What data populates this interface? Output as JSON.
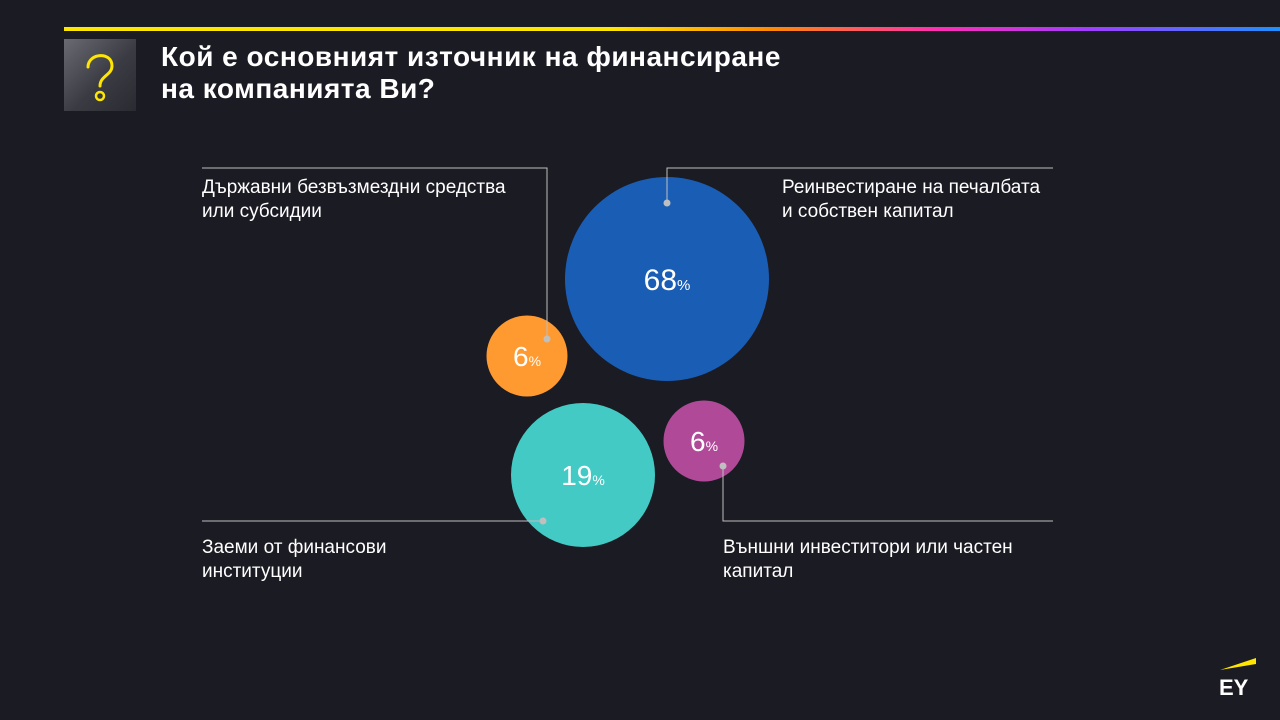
{
  "title_lines": [
    "Кой е основният източник на финансиране",
    "на компанията Ви?"
  ],
  "icon": "question-mark-icon",
  "logo_text": "EY",
  "colors": {
    "background": "#1b1b23",
    "blue": "#1a5db4",
    "orange": "#ff9a30",
    "teal": "#43cac4",
    "purple": "#b04a98",
    "connector": "#bfbfbf",
    "ey_yellow": "#ffe600"
  },
  "chart_data": {
    "type": "bubble",
    "unit": "%",
    "series": [
      {
        "label_lines": [
          "Реинвестиране на печалбата",
          "и собствен капитал"
        ],
        "value": 68,
        "color": "#1a5db4"
      },
      {
        "label_lines": [
          "Държавни безвъзмездни средства",
          "или субсидии"
        ],
        "value": 6,
        "color": "#ff9a30"
      },
      {
        "label_lines": [
          "Заеми от финансови",
          "институции"
        ],
        "value": 19,
        "color": "#43cac4"
      },
      {
        "label_lines": [
          "Външни инвеститори или частен",
          "капитал"
        ],
        "value": 6,
        "color": "#b04a98"
      }
    ]
  }
}
